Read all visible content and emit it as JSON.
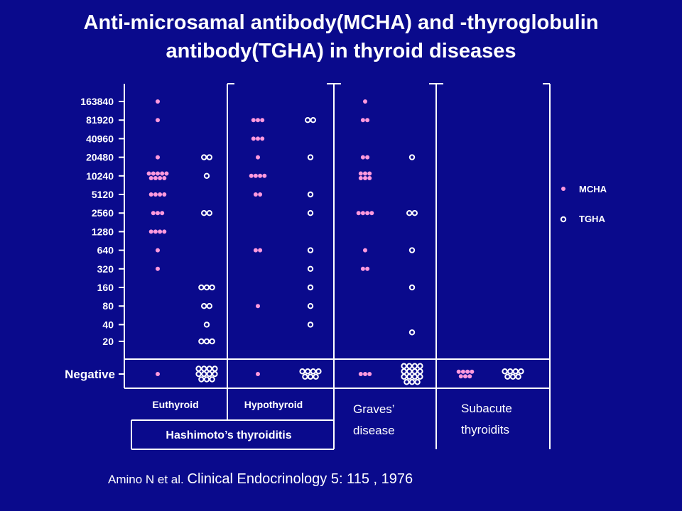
{
  "title_line1": "Anti-microsamal antibody(MCHA) and -thyroglobulin",
  "title_line2": "antibody(TGHA) in thyroid diseases",
  "citation_part1": "Amino N et al. ",
  "citation_part2": "Clinical Endocrinology 5: 115 , 1976",
  "colors": {
    "background": "#0a0a8c",
    "mcha": "#ff99dd",
    "tgha": "#ffffff",
    "axis": "#ffffff"
  },
  "chart_data": {
    "type": "scatter",
    "y_axis_scale": "log2 titer",
    "y_ticks": [
      "163840",
      "81920",
      "40960",
      "20480",
      "10240",
      "5120",
      "2560",
      "1280",
      "640",
      "320",
      "160",
      "80",
      "40",
      "20"
    ],
    "negative_label": "Negative",
    "groups": [
      {
        "label": "Euthyroid",
        "parent": "Hashimoto’s thyroiditis"
      },
      {
        "label": "Hypothyroid",
        "parent": "Hashimoto’s thyroiditis"
      },
      {
        "label": "Graves’ disease"
      },
      {
        "label": "Subacute thyroidits"
      }
    ],
    "parent_labels": [
      "Hashimoto’s thyroiditis"
    ],
    "legend": [
      {
        "name": "MCHA",
        "marker": "filled-dot"
      },
      {
        "name": "TGHA",
        "marker": "open-circle"
      }
    ],
    "legend_position": "right",
    "series": [
      {
        "name": "MCHA",
        "group": "Euthyroid",
        "counts": {
          "163840": 1,
          "81920": 1,
          "20480": 1,
          "10240": 9,
          "5120": 4,
          "2560": 3,
          "1280": 4,
          "640": 1,
          "320": 1,
          "Negative": 1
        }
      },
      {
        "name": "TGHA",
        "group": "Euthyroid",
        "counts": {
          "20480": 2,
          "10240": 1,
          "2560": 2,
          "160": 3,
          "80": 2,
          "40": 1,
          "20": 3,
          "Negative": 11
        }
      },
      {
        "name": "MCHA",
        "group": "Hypothyroid",
        "counts": {
          "81920": 3,
          "40960": 3,
          "20480": 1,
          "10240": 4,
          "5120": 2,
          "640": 2,
          "80": 1,
          "Negative": 1
        }
      },
      {
        "name": "TGHA",
        "group": "Hypothyroid",
        "counts": {
          "81920": 2,
          "20480": 1,
          "5120": 1,
          "2560": 1,
          "640": 1,
          "320": 1,
          "160": 1,
          "80": 1,
          "40": 1,
          "Negative": 7
        }
      },
      {
        "name": "MCHA",
        "group": "Graves’ disease",
        "counts": {
          "163840": 1,
          "81920": 2,
          "20480": 2,
          "10240": 6,
          "2560": 4,
          "640": 1,
          "320": 2,
          "Negative": 3
        }
      },
      {
        "name": "TGHA",
        "group": "Graves’ disease",
        "counts": {
          "20480": 1,
          "2560": 2,
          "640": 1,
          "160": 1,
          "30": 1,
          "Negative": 15
        }
      },
      {
        "name": "MCHA",
        "group": "Subacute thyroidits",
        "counts": {
          "Negative": 7
        }
      },
      {
        "name": "TGHA",
        "group": "Subacute thyroidits",
        "counts": {
          "Negative": 7
        }
      }
    ]
  }
}
